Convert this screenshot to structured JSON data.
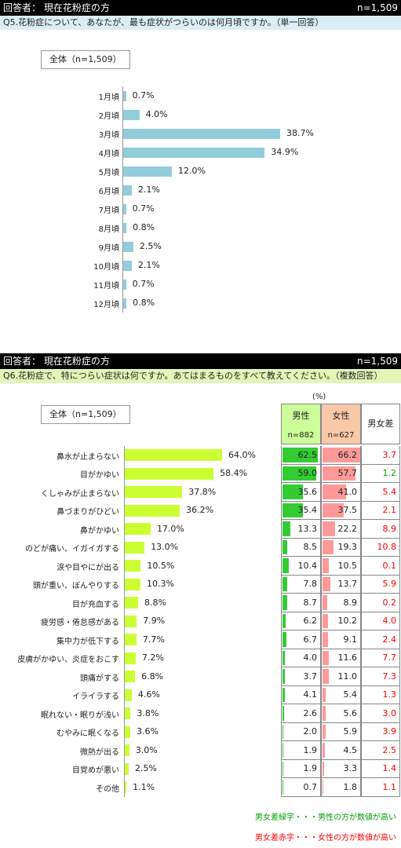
{
  "section1": {
    "header_left": "回答者： 現在花粉症の方",
    "header_right": "n=1,509",
    "question": "Q5.花粉症について、あなたが、最も症状がつらいのは何月頃ですか。（単一回答）",
    "total_label": "全体（n=1,509）"
  },
  "section2": {
    "header_left": "回答者： 現在花粉症の方",
    "header_right": "n=1,509",
    "question": "Q6.花粉症で、特につらい症状は何ですか。あてはまるものをすべて教えてください。（複数回答）",
    "total_label": "全体（n=1,509）",
    "percent_unit": "(%)",
    "col_male": "男性",
    "col_male_n": "n=882",
    "col_female": "女性",
    "col_female_n": "n=627",
    "col_diff": "男女差",
    "legend_green": "男女差緑字・・・男性の方が数値が高い",
    "legend_red": "男女差赤字・・・女性の方が数値が高い"
  },
  "colors": {
    "bar1": "#92cddc",
    "bar2": "#ccff33",
    "male_bar": "#33cc33",
    "female_bar": "#ff9999",
    "male_header": "#ccff99",
    "female_header": "#f8c8a8",
    "diff_green": "#00a000",
    "diff_red": "#ff0000"
  },
  "chart_data": [
    {
      "type": "bar",
      "title": "",
      "categories": [
        "1月頃",
        "2月頃",
        "3月頃",
        "4月頃",
        "5月頃",
        "6月頃",
        "7月頃",
        "8月頃",
        "9月頃",
        "10月頃",
        "11月頃",
        "12月頃"
      ],
      "values": [
        0.7,
        4.0,
        38.7,
        34.9,
        12.0,
        2.1,
        0.7,
        0.8,
        2.5,
        2.1,
        0.7,
        0.8
      ],
      "value_labels": [
        "0.7%",
        "4.0%",
        "38.7%",
        "34.9%",
        "12.0%",
        "2.1%",
        "0.7%",
        "0.8%",
        "2.5%",
        "2.1%",
        "0.7%",
        "0.8%"
      ],
      "orientation": "horizontal"
    },
    {
      "type": "bar",
      "title": "",
      "categories": [
        "鼻水が止まらない",
        "目がかゆい",
        "くしゃみが止まらない",
        "鼻づまりがひどい",
        "鼻がかゆい",
        "のどが痛い、イガイガする",
        "涙や目やにが出る",
        "頭が重い、ぼんやりする",
        "目が充血する",
        "疲労感・倦怠感がある",
        "集中力が低下する",
        "皮膚がかゆい、炎症をおこす",
        "頭痛がする",
        "イライラする",
        "眠れない・眠りが浅い",
        "むやみに眠くなる",
        "微熱が出る",
        "目覚めが悪い",
        "その他"
      ],
      "values": [
        64.0,
        58.4,
        37.8,
        36.2,
        17.0,
        13.0,
        10.5,
        10.3,
        8.8,
        7.9,
        7.7,
        7.2,
        6.8,
        4.6,
        3.8,
        3.6,
        3.0,
        2.5,
        1.1
      ],
      "value_labels": [
        "64.0%",
        "58.4%",
        "37.8%",
        "36.2%",
        "17.0%",
        "13.0%",
        "10.5%",
        "10.3%",
        "8.8%",
        "7.9%",
        "7.7%",
        "7.2%",
        "6.8%",
        "4.6%",
        "3.8%",
        "3.6%",
        "3.0%",
        "2.5%",
        "1.1%"
      ],
      "orientation": "horizontal"
    },
    {
      "type": "table",
      "columns": [
        "男性",
        "女性",
        "男女差"
      ],
      "male": [
        "62.5",
        "59.0",
        "35.6",
        "35.4",
        "13.3",
        "8.5",
        "10.4",
        "7.8",
        "8.7",
        "6.2",
        "6.7",
        "4.0",
        "3.7",
        "4.1",
        "2.6",
        "2.0",
        "1.9",
        "1.9",
        "0.7"
      ],
      "female": [
        "66.2",
        "57.7",
        "41.0",
        "37.5",
        "22.2",
        "19.3",
        "10.5",
        "13.7",
        "8.9",
        "10.2",
        "9.1",
        "11.6",
        "11.0",
        "5.4",
        "5.6",
        "5.9",
        "4.5",
        "3.3",
        "1.8"
      ],
      "diff": [
        "3.7",
        "1.2",
        "5.4",
        "2.1",
        "8.9",
        "10.8",
        "0.1",
        "5.9",
        "0.2",
        "4.0",
        "2.4",
        "7.7",
        "7.3",
        "1.3",
        "3.0",
        "3.9",
        "2.5",
        "1.4",
        "1.1"
      ],
      "diff_color": [
        "red",
        "green",
        "red",
        "red",
        "red",
        "red",
        "red",
        "red",
        "red",
        "red",
        "red",
        "red",
        "red",
        "red",
        "red",
        "red",
        "red",
        "red",
        "red"
      ]
    }
  ]
}
